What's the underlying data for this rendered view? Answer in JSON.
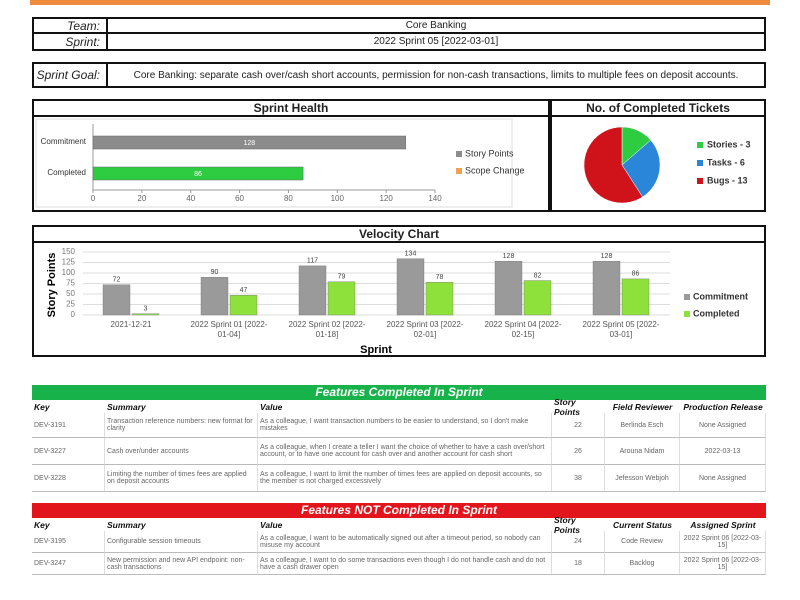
{
  "header": {
    "team_label": "Team:",
    "team": "Core Banking",
    "sprint_label": "Sprint:",
    "sprint": "2022 Sprint 05 [2022-03-01]",
    "goal_label": "Sprint Goal:",
    "goal": "Core Banking: separate cash over/cash short accounts, permission for non-cash transactions, limits to multiple fees on deposit accounts."
  },
  "chart_data": [
    {
      "type": "hbar",
      "title": "Sprint Health",
      "categories": [
        "Commitment",
        "Completed"
      ],
      "values": [
        128,
        86
      ],
      "colors": [
        "#8c8c8c",
        "#2ecc40"
      ],
      "xlim": [
        0,
        140
      ],
      "xticks": [
        0,
        20,
        40,
        60,
        80,
        100,
        120,
        140
      ],
      "legend": [
        {
          "name": "Story Points",
          "color": "#8c8c8c"
        },
        {
          "name": "Scope Change",
          "color": "#f0a050"
        }
      ]
    },
    {
      "type": "pie",
      "title": "No. of Completed Tickets",
      "labels": [
        "Stories - 3",
        "Tasks - 6",
        "Bugs - 13"
      ],
      "values": [
        3,
        6,
        13
      ],
      "colors": [
        "#2ecc40",
        "#2a86d8",
        "#d0121b"
      ]
    },
    {
      "type": "bar",
      "title": "Velocity Chart",
      "x_label": "Sprint",
      "y_label": "Story Points",
      "categories": [
        "2021-12-21",
        "2022 Sprint 01 [2022-01-04]",
        "2022 Sprint 02 [2022-01-18]",
        "2022 Sprint 03 [2022-02-01]",
        "2022 Sprint 04 [2022-02-15]",
        "2022 Sprint 05 [2022-03-01]"
      ],
      "series": [
        {
          "name": "Commitment",
          "color": "#9a9a9a",
          "values": [
            72,
            90,
            117,
            134,
            128,
            128
          ]
        },
        {
          "name": "Completed",
          "color": "#8ee03a",
          "values": [
            3,
            47,
            79,
            78,
            82,
            86
          ]
        }
      ],
      "ylim": [
        0,
        150
      ],
      "yticks": [
        0,
        25,
        50,
        75,
        100,
        125,
        150
      ],
      "grid": true
    }
  ],
  "tables": [
    {
      "title": "Features Completed In Sprint",
      "color": "#17b34a",
      "columns": [
        "Key",
        "Summary",
        "Value",
        "Story Points",
        "Field Reviewer",
        "Production Release"
      ],
      "rows": [
        [
          "DEV-3191",
          "Transaction reference numbers: new format for clarity",
          "As a colleague, I want transaction numbers to be easier to understand, so I don't make mistakes",
          "22",
          "Berlinda Esch",
          "None Assigned"
        ],
        [
          "DEV-3227",
          "Cash over/under accounts",
          "As a colleague, when I create a teller I want the choice of whether to have a cash over/short account, or to have one account for cash over and another account for cash short",
          "26",
          "Arouna Nidam",
          "2022-03-13"
        ],
        [
          "DEV-3228",
          "Limiting the number of times fees are applied on deposit accounts",
          "As a colleague, I want to limit the number of times fees are applied on deposit accounts, so the member is not charged excessively",
          "38",
          "Jefesson Webjoh",
          "None Assigned"
        ]
      ]
    },
    {
      "title": "Features NOT Completed In Sprint",
      "color": "#e3151c",
      "columns": [
        "Key",
        "Summary",
        "Value",
        "Story Points",
        "Current Status",
        "Assigned Sprint"
      ],
      "rows": [
        [
          "DEV-3195",
          "Configurable session timeouts",
          "As a colleague, I want to be automatically signed out after a timeout period, so nobody can misuse my account",
          "24",
          "Code Review",
          "2022 Sprint 06 [2022-03-15]"
        ],
        [
          "DEV-3247",
          "New permission and new API endpoint: non-cash transactions",
          "As a colleague, I want to do some transactions even though I do not handle cash and do not have a cash drawer open",
          "18",
          "Backlog",
          "2022 Sprint 06 [2022-03-15]"
        ]
      ]
    }
  ]
}
